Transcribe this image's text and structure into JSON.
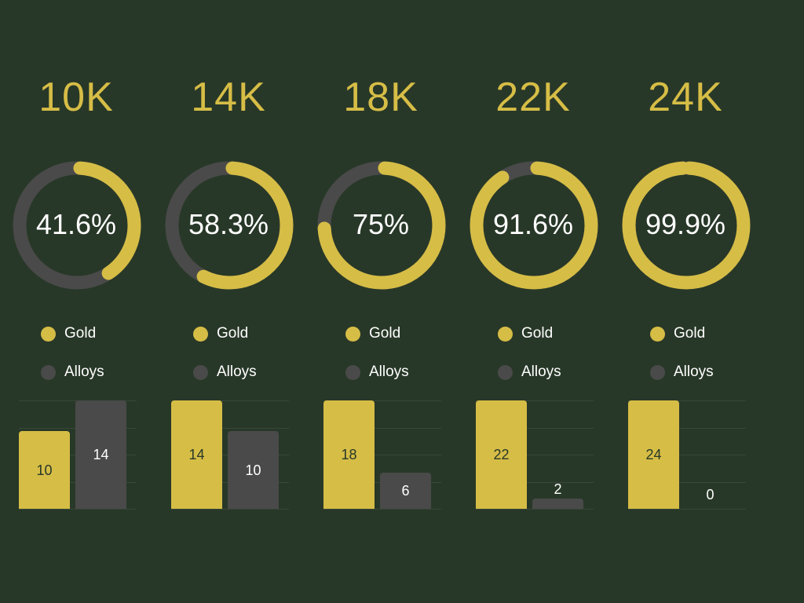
{
  "colors": {
    "background": "#283828",
    "gold": "#d6bd46",
    "alloy": "#4a4a4a",
    "title": "#d6bd46",
    "text": "#ffffff",
    "bar_label_on_gold": "#283828",
    "bar_label_on_alloy": "#ffffff"
  },
  "legend": {
    "gold": "Gold",
    "alloys": "Alloys"
  },
  "chart_data": [
    {
      "type": "pie",
      "variant": "donut",
      "title": "10K",
      "center_label": "41.6%",
      "slices": [
        {
          "name": "Gold",
          "value": 41.6
        },
        {
          "name": "Alloys",
          "value": 58.4
        }
      ]
    },
    {
      "type": "pie",
      "variant": "donut",
      "title": "14K",
      "center_label": "58.3%",
      "slices": [
        {
          "name": "Gold",
          "value": 58.3
        },
        {
          "name": "Alloys",
          "value": 41.7
        }
      ]
    },
    {
      "type": "pie",
      "variant": "donut",
      "title": "18K",
      "center_label": "75%",
      "slices": [
        {
          "name": "Gold",
          "value": 75
        },
        {
          "name": "Alloys",
          "value": 25
        }
      ]
    },
    {
      "type": "pie",
      "variant": "donut",
      "title": "22K",
      "center_label": "91.6%",
      "slices": [
        {
          "name": "Gold",
          "value": 91.6
        },
        {
          "name": "Alloys",
          "value": 8.4
        }
      ]
    },
    {
      "type": "pie",
      "variant": "donut",
      "title": "24K",
      "center_label": "99.9%",
      "slices": [
        {
          "name": "Gold",
          "value": 99.9
        },
        {
          "name": "Alloys",
          "value": 0.1
        }
      ]
    },
    {
      "type": "bar",
      "categories": [
        "Gold",
        "Alloys"
      ],
      "values": [
        10,
        14
      ],
      "value_labels": [
        "10",
        "14"
      ],
      "ylim": [
        0,
        14
      ]
    },
    {
      "type": "bar",
      "categories": [
        "Gold",
        "Alloys"
      ],
      "values": [
        14,
        10
      ],
      "value_labels": [
        "14",
        "10"
      ],
      "ylim": [
        0,
        14
      ]
    },
    {
      "type": "bar",
      "categories": [
        "Gold",
        "Alloys"
      ],
      "values": [
        18,
        6
      ],
      "value_labels": [
        "18",
        "6"
      ],
      "ylim": [
        0,
        18
      ]
    },
    {
      "type": "bar",
      "categories": [
        "Gold",
        "Alloys"
      ],
      "values": [
        22,
        2
      ],
      "value_labels": [
        "22",
        "2"
      ],
      "ylim": [
        0,
        22
      ]
    },
    {
      "type": "bar",
      "categories": [
        "Gold",
        "Alloys"
      ],
      "values": [
        24,
        0
      ],
      "value_labels": [
        "24",
        "0"
      ],
      "ylim": [
        0,
        24
      ]
    }
  ]
}
